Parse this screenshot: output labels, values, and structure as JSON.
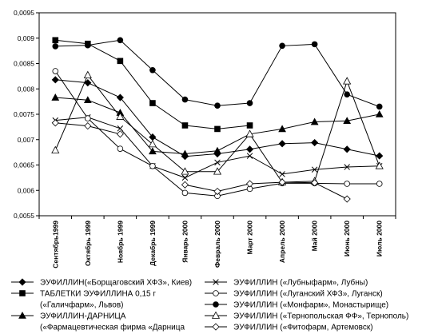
{
  "chart_data": {
    "type": "line",
    "title": "",
    "xlabel": "",
    "ylabel": "",
    "ylim": [
      0.0055,
      0.0095
    ],
    "yticks": [
      "0,0055",
      "0,006",
      "0,0065",
      "0,007",
      "0,0075",
      "0,008",
      "0,0085",
      "0,009",
      "0,0095"
    ],
    "ytick_values": [
      0.0055,
      0.006,
      0.0065,
      0.007,
      0.0075,
      0.008,
      0.0085,
      0.009,
      0.0095
    ],
    "grid": false,
    "legend_position": "bottom",
    "categories": [
      "Сентябрь1999",
      "Октябрь 1999",
      "Ноябрь 1999",
      "Декабрь 1999",
      "Январь 2000",
      "Февраль 2000",
      "Март 2000",
      "Апрель 2000",
      "Май 2000",
      "Июнь 2000",
      "Июль 2000"
    ],
    "series": [
      {
        "name_lines": [
          "ЭУФИЛЛИН(«Борщаговский ХФЗ», Киев)"
        ],
        "marker": "diamond-filled",
        "values": [
          0.00818,
          0.00812,
          0.00783,
          0.00705,
          0.00667,
          0.00672,
          0.00681,
          0.00692,
          0.00694,
          0.00681,
          0.00668
        ]
      },
      {
        "name_lines": [
          "ТАБЛЕТКИ ЭУФИЛЛИНА 0,15 г",
          "(«Галичфарм», Львов)"
        ],
        "marker": "square-filled",
        "values": [
          0.00896,
          0.00889,
          0.00855,
          0.00772,
          0.00728,
          0.00721,
          0.00728,
          null,
          null,
          null,
          null
        ]
      },
      {
        "name_lines": [
          "ЭУФИЛЛИН-ДАРНИЦА",
          "(«Фармацевтическая фирма «Дарница"
        ],
        "marker": "triangle-filled",
        "values": [
          0.00783,
          0.00778,
          0.00753,
          0.00677,
          0.00672,
          0.00678,
          0.00711,
          0.00721,
          0.00735,
          0.00737,
          0.0075
        ]
      },
      {
        "name_lines": [
          "ЭУФИЛЛИН («Лубныфарм», Лубны)"
        ],
        "marker": "x",
        "values": [
          0.00738,
          0.00744,
          0.00722,
          0.00648,
          0.00625,
          0.00655,
          0.00668,
          0.00632,
          0.00641,
          0.00646,
          0.00648
        ]
      },
      {
        "name_lines": [
          "ЭУФИЛЛИН («Луганский ХФЗ», Луганск)"
        ],
        "marker": "circle-open",
        "values": [
          0.00835,
          0.00742,
          0.00682,
          0.00648,
          0.00595,
          0.00589,
          0.00603,
          0.00614,
          0.00614,
          0.00613,
          0.00613
        ]
      },
      {
        "name_lines": [
          "ЭУФИЛЛИН («Монфарм», Монастырище)"
        ],
        "marker": "circle-filled",
        "values": [
          0.00884,
          0.00886,
          0.00896,
          0.00837,
          0.00779,
          0.00767,
          0.00772,
          0.00885,
          0.00888,
          0.00789,
          0.00765
        ]
      },
      {
        "name_lines": [
          "ЭУФИЛЛИН («Тернопольская ФФ», Тернополь)"
        ],
        "marker": "triangle-open",
        "values": [
          0.00679,
          0.00827,
          0.00745,
          0.00691,
          0.00637,
          0.00637,
          0.00711,
          0.00616,
          0.00618,
          0.00815,
          0.00648
        ]
      },
      {
        "name_lines": [
          "ЭУФИЛЛИН («Фитофарм, Артемовск)"
        ],
        "marker": "diamond-open",
        "values": [
          0.00733,
          0.00727,
          0.00711,
          null,
          0.00611,
          0.00598,
          0.00613,
          0.00616,
          0.00615,
          0.00583,
          null
        ]
      }
    ]
  }
}
